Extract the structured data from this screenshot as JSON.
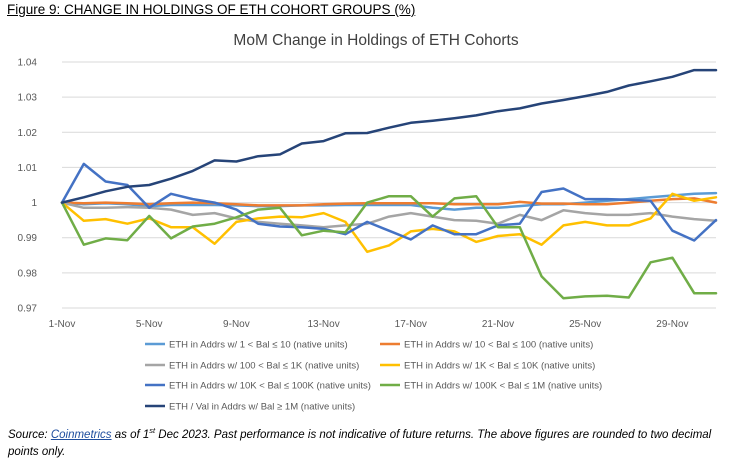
{
  "figure_title": "Figure 9: CHANGE IN HOLDINGS OF ETH COHORT GROUPS (%)",
  "source": {
    "prefix": "Source: ",
    "link_text": "Coinmetrics",
    "mid": " as of 1",
    "sup": "st",
    "suffix": " Dec 2023. Past performance is not indicative of future returns. The above figures are rounded to two decimal points only."
  },
  "chart_data": {
    "type": "line",
    "title": "MoM Change in Holdings of ETH Cohorts",
    "xlabel": "",
    "ylabel": "",
    "ylim": [
      0.97,
      1.04
    ],
    "y_ticks": [
      "0.97",
      "0.98",
      "0.99",
      "1",
      "1.01",
      "1.02",
      "1.03",
      "1.04"
    ],
    "x_ticks": [
      "1-Nov",
      "5-Nov",
      "9-Nov",
      "13-Nov",
      "17-Nov",
      "21-Nov",
      "25-Nov",
      "29-Nov"
    ],
    "x": [
      "1-Nov",
      "2-Nov",
      "3-Nov",
      "4-Nov",
      "5-Nov",
      "6-Nov",
      "7-Nov",
      "8-Nov",
      "9-Nov",
      "10-Nov",
      "11-Nov",
      "12-Nov",
      "13-Nov",
      "14-Nov",
      "15-Nov",
      "16-Nov",
      "17-Nov",
      "18-Nov",
      "19-Nov",
      "20-Nov",
      "21-Nov",
      "22-Nov",
      "23-Nov",
      "24-Nov",
      "25-Nov",
      "26-Nov",
      "27-Nov",
      "28-Nov",
      "29-Nov",
      "30-Nov",
      "1-Dec"
    ],
    "grid": "horizontal",
    "legend_position": "bottom",
    "series": [
      {
        "name": "ETH in Addrs w/ 1 < Bal ≤ 10 (native units)",
        "color": "#5b9bd5",
        "values": [
          1.0,
          0.9995,
          0.9998,
          0.9995,
          0.999,
          0.9993,
          0.9993,
          0.9993,
          0.9992,
          0.999,
          0.999,
          0.9992,
          0.9992,
          0.9993,
          0.9993,
          0.9993,
          0.9993,
          0.9985,
          0.998,
          0.9985,
          0.9985,
          0.999,
          0.9995,
          0.9995,
          1.0,
          1.0005,
          1.001,
          1.0015,
          1.002,
          1.0025,
          1.0027
        ]
      },
      {
        "name": "ETH in Addrs w/ 10 < Bal ≤ 100 (native units)",
        "color": "#ed7d31",
        "values": [
          1.0,
          0.9998,
          1.0,
          0.9998,
          0.9995,
          0.9998,
          1.0,
          0.9998,
          0.9995,
          0.9992,
          0.9992,
          0.9992,
          0.9995,
          0.9997,
          0.9998,
          0.9998,
          0.9998,
          0.9998,
          0.9995,
          0.9995,
          0.9995,
          1.0002,
          0.9997,
          0.9997,
          0.9995,
          0.9995,
          1.0,
          1.0005,
          1.001,
          1.0012,
          1.0
        ]
      },
      {
        "name": "ETH in Addrs w/ 100 < Bal ≤ 1K (native units)",
        "color": "#a5a5a5",
        "values": [
          1.0,
          0.9985,
          0.9985,
          0.9987,
          0.9985,
          0.998,
          0.9965,
          0.997,
          0.9955,
          0.9945,
          0.994,
          0.9935,
          0.993,
          0.9935,
          0.994,
          0.996,
          0.997,
          0.996,
          0.995,
          0.9948,
          0.994,
          0.9965,
          0.995,
          0.9978,
          0.997,
          0.9965,
          0.9965,
          0.997,
          0.996,
          0.9953,
          0.9948
        ]
      },
      {
        "name": "ETH in Addrs w/ 1K < Bal ≤ 10K (native units)",
        "color": "#ffc000",
        "values": [
          1.0,
          0.9948,
          0.9953,
          0.994,
          0.9955,
          0.993,
          0.993,
          0.9883,
          0.9945,
          0.9955,
          0.996,
          0.9958,
          0.997,
          0.9945,
          0.986,
          0.9878,
          0.9918,
          0.9925,
          0.9918,
          0.9888,
          0.9905,
          0.991,
          0.988,
          0.9935,
          0.9945,
          0.9935,
          0.9935,
          0.9955,
          1.0025,
          1.0005,
          1.0015
        ]
      },
      {
        "name": "ETH in Addrs w/ 10K < Bal ≤ 100K (native units)",
        "color": "#4472c4",
        "values": [
          1.0,
          1.011,
          1.006,
          1.005,
          0.9985,
          1.0025,
          1.001,
          1.0,
          0.998,
          0.994,
          0.9932,
          0.993,
          0.9925,
          0.991,
          0.9945,
          0.992,
          0.9895,
          0.9935,
          0.991,
          0.991,
          0.9935,
          0.994,
          1.003,
          1.004,
          1.001,
          1.001,
          1.0008,
          1.0005,
          0.992,
          0.9892,
          0.995
        ]
      },
      {
        "name": "ETH in Addrs w/ 100K < Bal ≤ 1M (native units)",
        "color": "#70ad47",
        "values": [
          1.0,
          0.988,
          0.9898,
          0.9893,
          0.9962,
          0.9898,
          0.9932,
          0.994,
          0.9958,
          0.998,
          0.9985,
          0.9907,
          0.992,
          0.9915,
          1.0,
          1.0018,
          1.0018,
          0.996,
          1.0012,
          1.0018,
          0.993,
          0.993,
          0.979,
          0.9728,
          0.9733,
          0.9735,
          0.973,
          0.983,
          0.9843,
          0.9742,
          0.9742
        ]
      },
      {
        "name": "ETH / Val in Addrs w/ Bal ≥ 1M (native units)",
        "color": "#264478",
        "values": [
          1.0,
          1.0015,
          1.0032,
          1.0045,
          1.005,
          1.0068,
          1.009,
          1.012,
          1.0117,
          1.0132,
          1.0137,
          1.0168,
          1.0175,
          1.0197,
          1.0198,
          1.0213,
          1.0227,
          1.0233,
          1.024,
          1.0248,
          1.026,
          1.0268,
          1.0282,
          1.0292,
          1.0303,
          1.0315,
          1.0333,
          1.0345,
          1.0358,
          1.0377,
          1.0377
        ]
      }
    ]
  }
}
